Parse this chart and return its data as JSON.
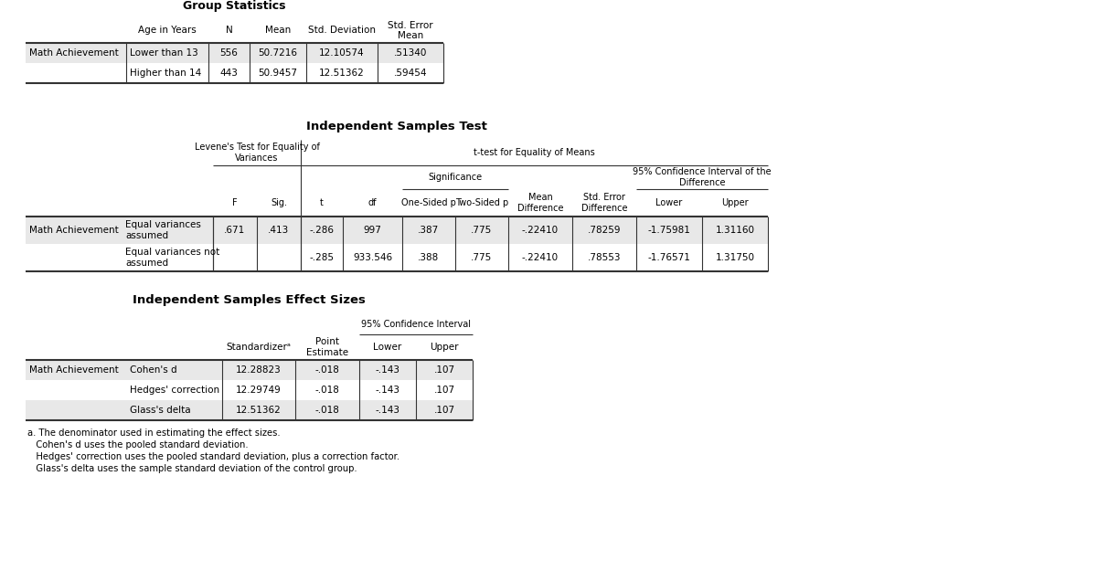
{
  "bg_color": "#ffffff",
  "gray_row": "#e8e8e8",
  "table1_title": "Group Statistics",
  "table1_headers": [
    "Age in Years",
    "N",
    "Mean",
    "Std. Deviation",
    "Std. Error\nMean"
  ],
  "table1_row_label": "Math Achievement",
  "table1_rows": [
    [
      "Lower than 13",
      "556",
      "50.7216",
      "12.10574",
      ".51340"
    ],
    [
      "Higher than 14",
      "443",
      "50.9457",
      "12.51362",
      ".59454"
    ]
  ],
  "table2_title": "Independent Samples Test",
  "table2_levene_label": "Levene's Test for Equality of\nVariances",
  "table2_ttest_label": "t-test for Equality of Means",
  "table2_sig_label": "Significance",
  "table2_ci_label": "95% Confidence Interval of the\nDifference",
  "table2_col_labels": [
    "F",
    "Sig.",
    "t",
    "df",
    "One-Sided p",
    "Two-Sided p",
    "Mean\nDifference",
    "Std. Error\nDifference",
    "Lower",
    "Upper"
  ],
  "table2_row_label": "Math Achievement",
  "table2_rows": [
    [
      "Equal variances\nassumed",
      ".671",
      ".413",
      "-.286",
      "997",
      ".387",
      ".775",
      "-.22410",
      ".78259",
      "-1.75981",
      "1.31160"
    ],
    [
      "Equal variances not\nassumed",
      "",
      "",
      "-.285",
      "933.546",
      ".388",
      ".775",
      "-.22410",
      ".78553",
      "-1.76571",
      "1.31750"
    ]
  ],
  "table3_title": "Independent Samples Effect Sizes",
  "table3_ci_label": "95% Confidence Interval",
  "table3_row_label": "Math Achievement",
  "table3_rows": [
    [
      "Cohen's d",
      "12.28823",
      "-.018",
      "-.143",
      ".107"
    ],
    [
      "Hedges' correction",
      "12.29749",
      "-.018",
      "-.143",
      ".107"
    ],
    [
      "Glass's delta",
      "12.51362",
      "-.018",
      "-.143",
      ".107"
    ]
  ],
  "table3_footnotes": [
    "a. The denominator used in estimating the effect sizes.",
    "   Cohen's d uses the pooled standard deviation.",
    "   Hedges' correction uses the pooled standard deviation, plus a correction factor.",
    "   Glass's delta uses the sample standard deviation of the control group."
  ]
}
